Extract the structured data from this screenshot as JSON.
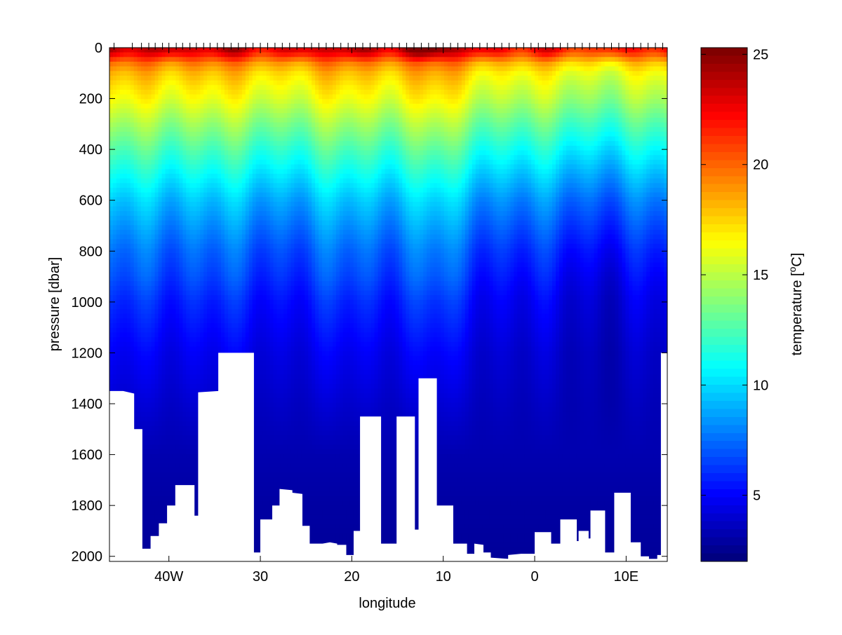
{
  "chart_data": {
    "type": "heatmap",
    "title": "",
    "xlabel": "longitude",
    "ylabel": "pressure [dbar]",
    "colorbar_label": "temperature [",
    "colorbar_label_sup": "o",
    "colorbar_label_end": "C]",
    "xlim": [
      -46.5,
      14.5
    ],
    "ylim": [
      0,
      2020
    ],
    "y_reversed": true,
    "x_ticks": [
      {
        "value": -40,
        "label": "40W"
      },
      {
        "value": -30,
        "label": "30"
      },
      {
        "value": -20,
        "label": "20"
      },
      {
        "value": -10,
        "label": "10"
      },
      {
        "value": 0,
        "label": "0"
      },
      {
        "value": 10,
        "label": "10E"
      }
    ],
    "y_ticks": [
      {
        "value": 0,
        "label": "0"
      },
      {
        "value": 200,
        "label": "200"
      },
      {
        "value": 400,
        "label": "400"
      },
      {
        "value": 600,
        "label": "600"
      },
      {
        "value": 800,
        "label": "800"
      },
      {
        "value": 1000,
        "label": "1000"
      },
      {
        "value": 1200,
        "label": "1200"
      },
      {
        "value": 1400,
        "label": "1400"
      },
      {
        "value": 1600,
        "label": "1600"
      },
      {
        "value": 1800,
        "label": "1800"
      },
      {
        "value": 2000,
        "label": "2000"
      }
    ],
    "colorbar": {
      "range": [
        2,
        25.3
      ],
      "ticks": [
        {
          "value": 5,
          "label": "5"
        },
        {
          "value": 10,
          "label": "10"
        },
        {
          "value": 15,
          "label": "15"
        },
        {
          "value": 20,
          "label": "20"
        },
        {
          "value": 25,
          "label": "25"
        }
      ],
      "colormap": "jet"
    },
    "stations_longitude": [
      -46,
      -44,
      -43,
      -42.2,
      -41.5,
      -40.7,
      -40,
      -39.2,
      -38.5,
      -37.7,
      -37,
      -36.2,
      -35.5,
      -34.7,
      -34,
      -33.2,
      -32.4,
      -31.6,
      -30.8,
      -30,
      -29.2,
      -28.4,
      -27.6,
      -26.8,
      -26,
      -25.2,
      -24.4,
      -23.6,
      -22.8,
      -22,
      -21.2,
      -20.4,
      -19.6,
      -18.8,
      -18,
      -17.2,
      -16.4,
      -15.6,
      -14.8,
      -14,
      -13.2,
      -12.4,
      -11.6,
      -10.8,
      -10,
      -9.2,
      -8.4,
      -7.6,
      -6.8,
      -6,
      -5.2,
      -4.4,
      -3.6,
      -2.8,
      -2,
      -1.2,
      -0.4,
      0.4,
      1.2,
      2,
      2.8,
      3.6,
      4.4,
      5.2,
      6,
      6.8,
      7.6,
      8.4,
      9.2,
      10,
      10.8,
      11.6,
      12.4,
      13.2,
      14
    ],
    "temperature_profile": {
      "pressure": [
        0,
        30,
        60,
        100,
        150,
        200,
        300,
        400,
        500,
        600,
        700,
        800,
        1000,
        1200,
        1400,
        1600,
        1800,
        2000
      ],
      "temperature": [
        23,
        21,
        18.5,
        17,
        16,
        15.2,
        13.2,
        11.4,
        9.8,
        8.3,
        7.2,
        6.2,
        4.8,
        4.0,
        3.5,
        3.1,
        2.8,
        2.6
      ]
    },
    "bottom_depth": [
      [
        -46.5,
        1350
      ],
      [
        -45,
        1350
      ],
      [
        -43.8,
        1360
      ],
      [
        -43.8,
        1500
      ],
      [
        -42.9,
        1500
      ],
      [
        -42.9,
        1970
      ],
      [
        -42,
        1970
      ],
      [
        -42,
        1920
      ],
      [
        -41.1,
        1920
      ],
      [
        -41.1,
        1870
      ],
      [
        -40.2,
        1870
      ],
      [
        -40.2,
        1800
      ],
      [
        -39.3,
        1800
      ],
      [
        -39.3,
        1720
      ],
      [
        -37.2,
        1720
      ],
      [
        -37.2,
        1840
      ],
      [
        -36.8,
        1840
      ],
      [
        -36.8,
        1355
      ],
      [
        -34.6,
        1350
      ],
      [
        -34.6,
        1200
      ],
      [
        -30.7,
        1200
      ],
      [
        -30.7,
        1985
      ],
      [
        -30.0,
        1985
      ],
      [
        -30.0,
        1855
      ],
      [
        -28.7,
        1855
      ],
      [
        -28.7,
        1800
      ],
      [
        -27.9,
        1800
      ],
      [
        -27.9,
        1735
      ],
      [
        -26.5,
        1740
      ],
      [
        -26.5,
        1750
      ],
      [
        -25.4,
        1755
      ],
      [
        -25.4,
        1880
      ],
      [
        -24.6,
        1880
      ],
      [
        -24.6,
        1950
      ],
      [
        -23.2,
        1950
      ],
      [
        -22.4,
        1945
      ],
      [
        -21.6,
        1950
      ],
      [
        -21.6,
        1955
      ],
      [
        -20.6,
        1955
      ],
      [
        -20.6,
        1995
      ],
      [
        -19.8,
        1995
      ],
      [
        -19.8,
        1900
      ],
      [
        -19.1,
        1900
      ],
      [
        -19.1,
        1450
      ],
      [
        -16.8,
        1450
      ],
      [
        -16.8,
        1950
      ],
      [
        -15.1,
        1950
      ],
      [
        -15.1,
        1450
      ],
      [
        -13.1,
        1450
      ],
      [
        -13.1,
        1895
      ],
      [
        -12.7,
        1895
      ],
      [
        -12.7,
        1300
      ],
      [
        -10.7,
        1300
      ],
      [
        -10.7,
        1800
      ],
      [
        -8.9,
        1800
      ],
      [
        -8.9,
        1950
      ],
      [
        -7.4,
        1950
      ],
      [
        -7.4,
        1990
      ],
      [
        -6.6,
        1990
      ],
      [
        -6.6,
        1950
      ],
      [
        -5.6,
        1955
      ],
      [
        -5.6,
        1985
      ],
      [
        -4.8,
        1985
      ],
      [
        -4.8,
        2005
      ],
      [
        -2.9,
        2010
      ],
      [
        -2.9,
        1995
      ],
      [
        -1.5,
        1990
      ],
      [
        0,
        1990
      ],
      [
        0,
        1905
      ],
      [
        1.8,
        1905
      ],
      [
        1.8,
        1950
      ],
      [
        2.8,
        1950
      ],
      [
        2.8,
        1855
      ],
      [
        4.6,
        1855
      ],
      [
        4.6,
        1940
      ],
      [
        4.8,
        1940
      ],
      [
        4.8,
        1900
      ],
      [
        5.9,
        1900
      ],
      [
        5.9,
        1930
      ],
      [
        6.1,
        1930
      ],
      [
        6.1,
        1820
      ],
      [
        7.7,
        1820
      ],
      [
        7.7,
        1985
      ],
      [
        8.7,
        1985
      ],
      [
        8.7,
        1750
      ],
      [
        10.5,
        1750
      ],
      [
        10.5,
        1945
      ],
      [
        11.6,
        1945
      ],
      [
        11.6,
        2000
      ],
      [
        12.5,
        2000
      ],
      [
        12.5,
        2010
      ],
      [
        13.4,
        2010
      ],
      [
        13.4,
        1995
      ],
      [
        13.8,
        1995
      ],
      [
        13.8,
        1200
      ],
      [
        14.5,
        1200
      ]
    ]
  }
}
